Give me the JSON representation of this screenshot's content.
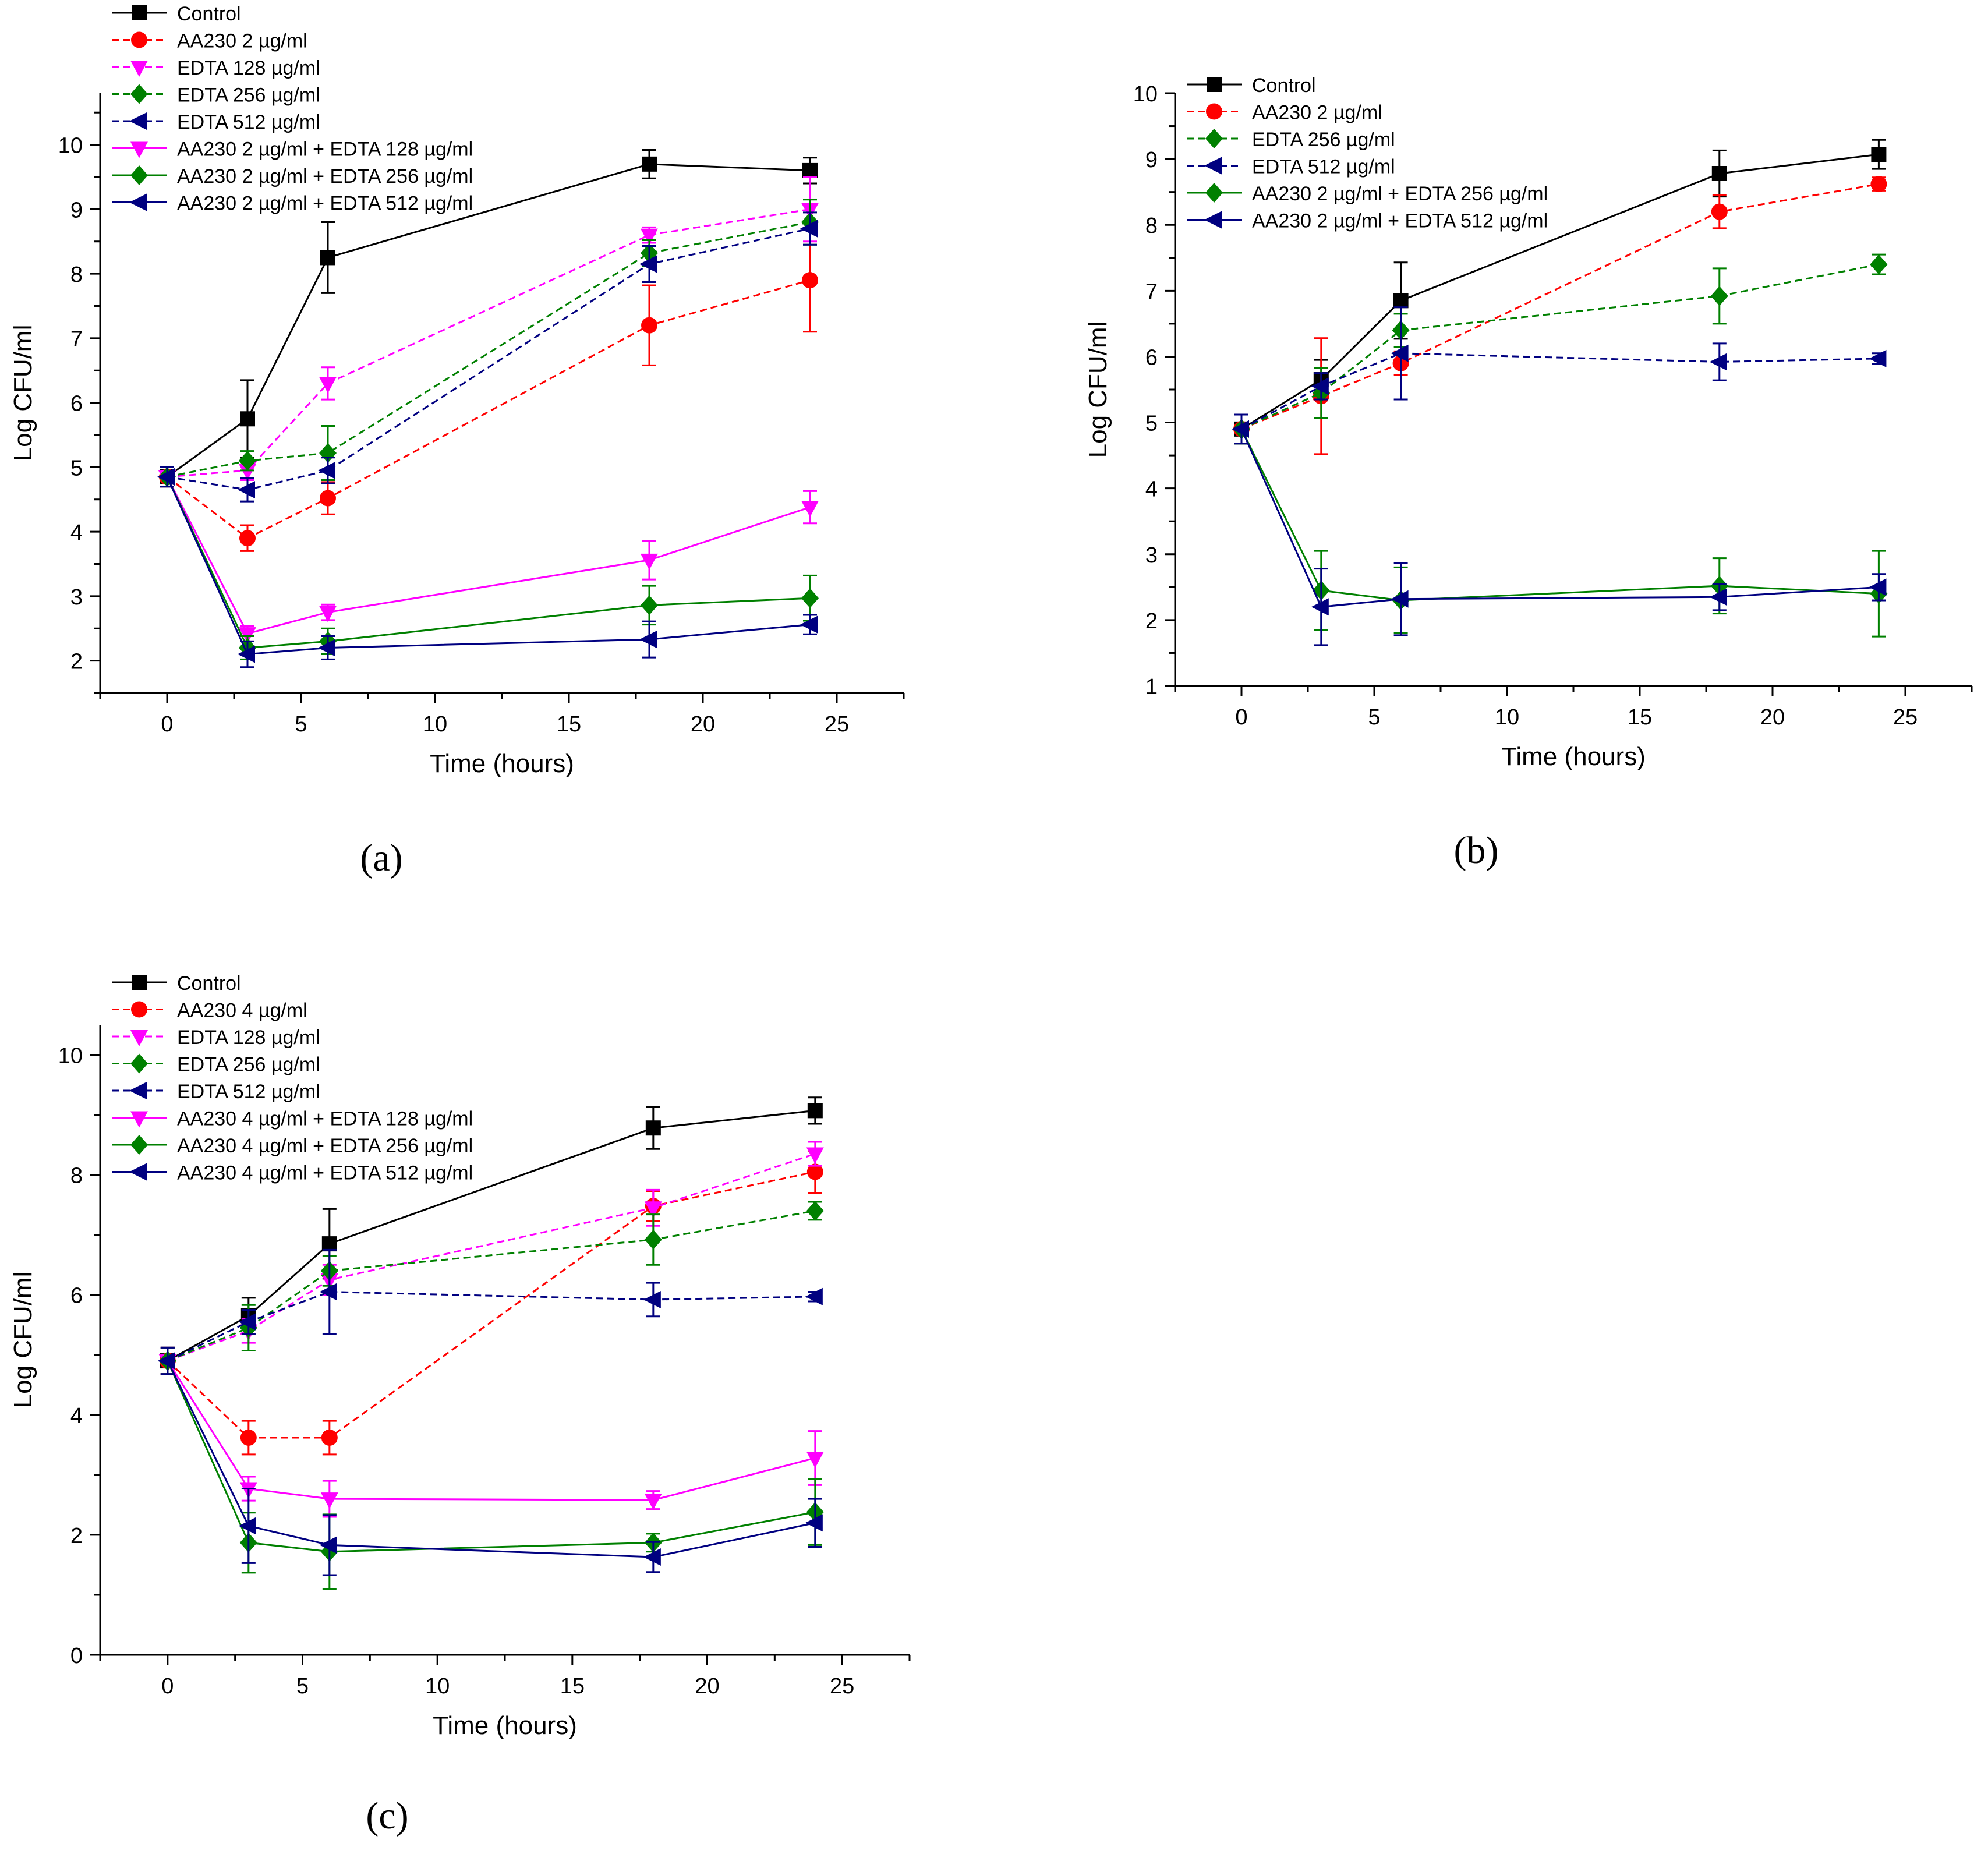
{
  "figure": {
    "colors": {
      "control": "#000000",
      "red": "#ff0000",
      "magenta": "#ff00ff",
      "green": "#008000",
      "navy": "#000080"
    }
  },
  "chart_data": [
    {
      "type": "line",
      "panel_label": "(a)",
      "xlabel": "Time (hours)",
      "ylabel": "Log CFU/ml",
      "xlim": [
        -2.5,
        27.5
      ],
      "ylim": [
        1.5,
        10.8
      ],
      "xticks": [
        0,
        5,
        10,
        15,
        20,
        25
      ],
      "yticks": [
        2,
        3,
        4,
        5,
        6,
        7,
        8,
        9,
        10
      ],
      "x": [
        0,
        3,
        6,
        18,
        24
      ],
      "legend_position": "top-left",
      "series": [
        {
          "name": "Control",
          "color": "#000000",
          "dash": "solid",
          "marker": "square",
          "values": [
            4.85,
            5.75,
            8.25,
            9.7,
            9.6
          ],
          "errors": [
            0.15,
            0.6,
            0.55,
            0.22,
            0.2
          ]
        },
        {
          "name": "AA230 2 µg/ml",
          "color": "#ff0000",
          "dash": "dashed",
          "marker": "circle",
          "values": [
            4.85,
            3.9,
            4.52,
            7.2,
            7.9
          ],
          "errors": [
            0.15,
            0.2,
            0.25,
            0.62,
            0.8
          ]
        },
        {
          "name": "EDTA 128 µg/ml",
          "color": "#ff00ff",
          "dash": "dashed",
          "marker": "triangle-down",
          "values": [
            4.85,
            4.95,
            6.3,
            8.6,
            9.0
          ],
          "errors": [
            0.15,
            0.15,
            0.25,
            0.12,
            0.5
          ]
        },
        {
          "name": "EDTA 256 µg/ml",
          "color": "#008000",
          "dash": "dashed",
          "marker": "diamond",
          "values": [
            4.85,
            5.1,
            5.22,
            8.32,
            8.8
          ],
          "errors": [
            0.15,
            0.15,
            0.42,
            0.2,
            0.35
          ]
        },
        {
          "name": "EDTA 512 µg/ml",
          "color": "#000080",
          "dash": "dashed",
          "marker": "triangle-left",
          "values": [
            4.85,
            4.65,
            4.95,
            8.15,
            8.7
          ],
          "errors": [
            0.15,
            0.18,
            0.2,
            0.28,
            0.25
          ]
        },
        {
          "name": "AA230 2 µg/ml + EDTA 128 µg/ml",
          "color": "#ff00ff",
          "dash": "solid",
          "marker": "triangle-down",
          "values": [
            4.85,
            2.42,
            2.75,
            3.56,
            4.38
          ],
          "errors": [
            0.15,
            0.12,
            0.12,
            0.3,
            0.25
          ]
        },
        {
          "name": "AA230 2 µg/ml + EDTA 256 µg/ml",
          "color": "#008000",
          "dash": "solid",
          "marker": "diamond",
          "values": [
            4.85,
            2.2,
            2.3,
            2.86,
            2.97
          ],
          "errors": [
            0.15,
            0.18,
            0.2,
            0.3,
            0.35
          ]
        },
        {
          "name": "AA230 2 µg/ml + EDTA 512 µg/ml",
          "color": "#000080",
          "dash": "solid",
          "marker": "triangle-left",
          "values": [
            4.85,
            2.1,
            2.2,
            2.33,
            2.56
          ],
          "errors": [
            0.15,
            0.2,
            0.18,
            0.28,
            0.15
          ]
        }
      ]
    },
    {
      "type": "line",
      "panel_label": "(b)",
      "xlabel": "Time (hours)",
      "ylabel": "Log CFU/ml",
      "xlim": [
        -2.5,
        27.5
      ],
      "ylim": [
        1,
        10
      ],
      "xticks": [
        0,
        5,
        10,
        15,
        20,
        25
      ],
      "yticks": [
        1,
        2,
        3,
        4,
        5,
        6,
        7,
        8,
        9,
        10
      ],
      "x": [
        0,
        3,
        6,
        18,
        24
      ],
      "legend_position": "top-left",
      "series": [
        {
          "name": "Control",
          "color": "#000000",
          "dash": "solid",
          "marker": "square",
          "values": [
            4.9,
            5.65,
            6.85,
            8.78,
            9.07
          ],
          "errors": [
            0.22,
            0.3,
            0.58,
            0.35,
            0.22
          ]
        },
        {
          "name": "AA230 2 µg/ml",
          "color": "#ff0000",
          "dash": "dashed",
          "marker": "circle",
          "values": [
            4.9,
            5.4,
            5.9,
            8.2,
            8.62
          ],
          "errors": [
            0.22,
            0.88,
            0.18,
            0.25,
            0.1
          ]
        },
        {
          "name": "EDTA 256 µg/ml",
          "color": "#008000",
          "dash": "dashed",
          "marker": "diamond",
          "values": [
            4.9,
            5.45,
            6.4,
            6.92,
            7.4
          ],
          "errors": [
            0.22,
            0.38,
            0.25,
            0.42,
            0.15
          ]
        },
        {
          "name": "EDTA 512 µg/ml",
          "color": "#000080",
          "dash": "dashed",
          "marker": "triangle-left",
          "values": [
            4.9,
            5.55,
            6.05,
            5.92,
            5.97
          ],
          "errors": [
            0.22,
            0.2,
            0.7,
            0.28,
            0.08
          ]
        },
        {
          "name": "AA230 2 µg/ml + EDTA 256 µg/ml",
          "color": "#008000",
          "dash": "solid",
          "marker": "diamond",
          "values": [
            4.9,
            2.45,
            2.3,
            2.52,
            2.4
          ],
          "errors": [
            0.22,
            0.6,
            0.5,
            0.42,
            0.65
          ]
        },
        {
          "name": "AA230 2 µg/ml + EDTA 512 µg/ml",
          "color": "#000080",
          "dash": "solid",
          "marker": "triangle-left",
          "values": [
            4.9,
            2.2,
            2.32,
            2.35,
            2.5
          ],
          "errors": [
            0.22,
            0.58,
            0.55,
            0.2,
            0.2
          ]
        }
      ]
    },
    {
      "type": "line",
      "panel_label": "(c)",
      "xlabel": "Time (hours)",
      "ylabel": "Log CFU/ml",
      "xlim": [
        -2.5,
        27.5
      ],
      "ylim": [
        0,
        10.5
      ],
      "xticks": [
        0,
        5,
        10,
        15,
        20,
        25
      ],
      "yticks": [
        0,
        2,
        4,
        6,
        8,
        10
      ],
      "x": [
        0,
        3,
        6,
        18,
        24
      ],
      "legend_position": "top-left",
      "series": [
        {
          "name": "Control",
          "color": "#000000",
          "dash": "solid",
          "marker": "square",
          "values": [
            4.9,
            5.65,
            6.85,
            8.78,
            9.07
          ],
          "errors": [
            0.22,
            0.3,
            0.58,
            0.35,
            0.22
          ]
        },
        {
          "name": "AA230 4 µg/ml",
          "color": "#ff0000",
          "dash": "dashed",
          "marker": "circle",
          "values": [
            4.9,
            3.62,
            3.62,
            7.48,
            8.05
          ],
          "errors": [
            0.22,
            0.28,
            0.28,
            0.25,
            0.35
          ]
        },
        {
          "name": "EDTA 128 µg/ml",
          "color": "#ff00ff",
          "dash": "dashed",
          "marker": "triangle-down",
          "values": [
            4.9,
            5.4,
            6.25,
            7.45,
            8.35
          ],
          "errors": [
            0.22,
            0.2,
            0.25,
            0.3,
            0.2
          ]
        },
        {
          "name": "EDTA 256 µg/ml",
          "color": "#008000",
          "dash": "dashed",
          "marker": "diamond",
          "values": [
            4.9,
            5.45,
            6.4,
            6.92,
            7.4
          ],
          "errors": [
            0.22,
            0.38,
            0.25,
            0.42,
            0.15
          ]
        },
        {
          "name": "EDTA 512 µg/ml",
          "color": "#000080",
          "dash": "dashed",
          "marker": "triangle-left",
          "values": [
            4.9,
            5.55,
            6.05,
            5.92,
            5.97
          ],
          "errors": [
            0.22,
            0.2,
            0.7,
            0.28,
            0.08
          ]
        },
        {
          "name": "AA230 4 µg/ml + EDTA 128 µg/ml",
          "color": "#ff00ff",
          "dash": "solid",
          "marker": "triangle-down",
          "values": [
            4.9,
            2.77,
            2.6,
            2.58,
            3.28
          ],
          "errors": [
            0.22,
            0.2,
            0.3,
            0.15,
            0.45
          ]
        },
        {
          "name": "AA230 4 µg/ml + EDTA 256 µg/ml",
          "color": "#008000",
          "dash": "solid",
          "marker": "diamond",
          "values": [
            4.9,
            1.87,
            1.72,
            1.87,
            2.38
          ],
          "errors": [
            0.22,
            0.5,
            0.62,
            0.15,
            0.55
          ]
        },
        {
          "name": "AA230 4 µg/ml + EDTA 512 µg/ml",
          "color": "#000080",
          "dash": "solid",
          "marker": "triangle-left",
          "values": [
            4.9,
            2.15,
            1.83,
            1.63,
            2.2
          ],
          "errors": [
            0.22,
            0.62,
            0.5,
            0.25,
            0.4
          ]
        }
      ]
    }
  ]
}
